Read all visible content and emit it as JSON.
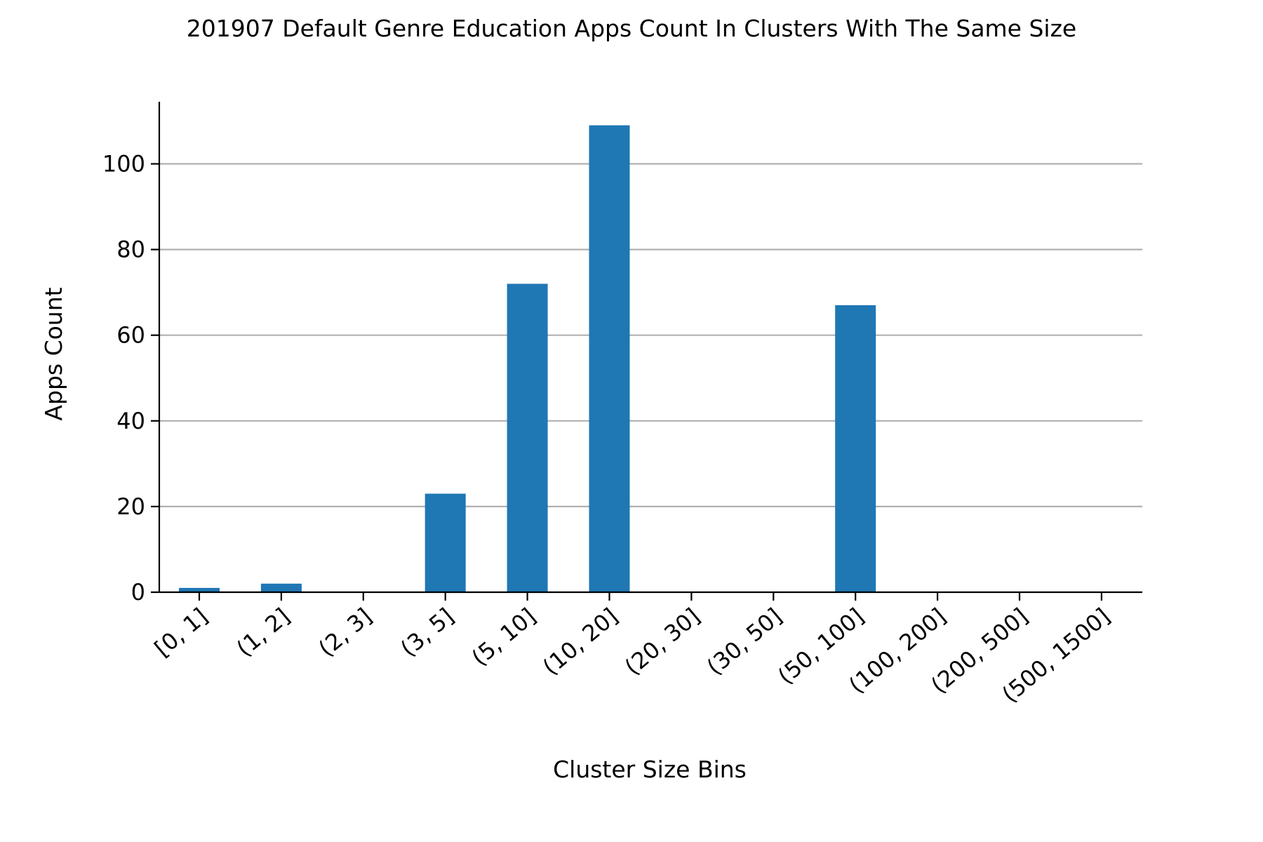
{
  "chart_data": {
    "type": "bar",
    "title": "201907 Default Genre Education Apps Count In Clusters With The Same Size",
    "xlabel": "Cluster Size Bins",
    "ylabel": "Apps Count",
    "categories": [
      "[0, 1]",
      "(1, 2]",
      "(2, 3]",
      "(3, 5]",
      "(5, 10]",
      "(10, 20]",
      "(20, 30]",
      "(30, 50]",
      "(50, 100]",
      "(100, 200]",
      "(200, 500]",
      "(500, 1500]"
    ],
    "values": [
      1,
      2,
      0,
      23,
      72,
      109,
      0,
      0,
      67,
      0,
      0,
      0
    ],
    "ylim": [
      0,
      114.5
    ],
    "yticks": [
      0,
      20,
      40,
      60,
      80,
      100
    ],
    "grid": "y",
    "bar_color": "#1f77b4",
    "legend": "none"
  }
}
